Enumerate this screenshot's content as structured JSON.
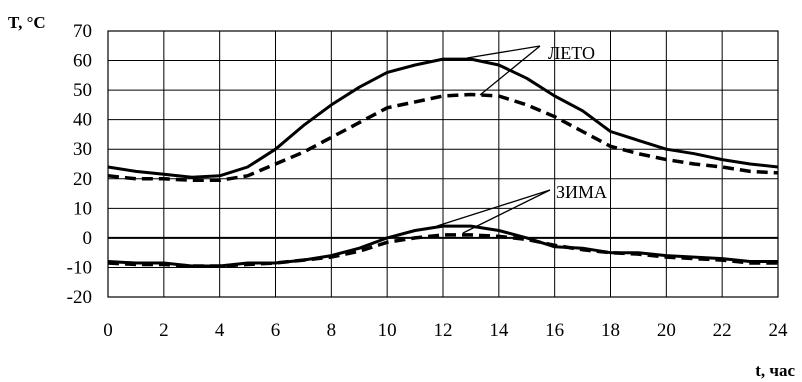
{
  "chart_data": {
    "type": "line",
    "ylabel": "T, °C",
    "xlabel": "t, час",
    "xlim": [
      0,
      24
    ],
    "ylim": [
      -20,
      70
    ],
    "x_ticks": [
      "0",
      "2",
      "4",
      "6",
      "8",
      "10",
      "12",
      "14",
      "16",
      "18",
      "20",
      "22",
      "24"
    ],
    "y_ticks": [
      "-20",
      "-10",
      "0",
      "10",
      "20",
      "30",
      "40",
      "50",
      "60",
      "70"
    ],
    "grid": true,
    "annotations": [
      {
        "text": "ЛЕТО",
        "series_group": "summer"
      },
      {
        "text": "ЗИМА",
        "series_group": "winter"
      }
    ],
    "series": [
      {
        "group": "summer",
        "style": "solid",
        "x": [
          0,
          1,
          2,
          3,
          4,
          5,
          6,
          7,
          8,
          9,
          10,
          11,
          12,
          13,
          14,
          15,
          16,
          17,
          18,
          19,
          20,
          21,
          22,
          23,
          24
        ],
        "y": [
          24,
          22.5,
          21.5,
          20.5,
          21,
          24,
          30,
          38,
          45,
          51,
          56,
          58.5,
          60.5,
          60.5,
          58.5,
          54,
          48,
          43,
          36,
          33,
          30,
          28.5,
          26.5,
          25,
          24
        ]
      },
      {
        "group": "summer",
        "style": "dashed",
        "x": [
          0,
          1,
          2,
          3,
          4,
          5,
          6,
          7,
          8,
          9,
          10,
          11,
          12,
          13,
          14,
          15,
          16,
          17,
          18,
          19,
          20,
          21,
          22,
          23,
          24
        ],
        "y": [
          21,
          20,
          20,
          19.5,
          19.5,
          21,
          25,
          29,
          34,
          39,
          44,
          46,
          48,
          48.5,
          48,
          45,
          41,
          36,
          31,
          28.5,
          26.5,
          25,
          24,
          22.5,
          22
        ]
      },
      {
        "group": "winter",
        "style": "solid",
        "x": [
          0,
          1,
          2,
          3,
          4,
          5,
          6,
          7,
          8,
          9,
          10,
          11,
          12,
          13,
          14,
          15,
          16,
          17,
          18,
          19,
          20,
          21,
          22,
          23,
          24
        ],
        "y": [
          -8,
          -8.5,
          -8.5,
          -9.5,
          -9.5,
          -8.5,
          -8.5,
          -7.5,
          -6,
          -3.5,
          0,
          2.5,
          4,
          4,
          2.5,
          0,
          -3,
          -3.5,
          -5,
          -5,
          -6,
          -6.5,
          -7,
          -8,
          -8
        ]
      },
      {
        "group": "winter",
        "style": "dashed",
        "x": [
          0,
          1,
          2,
          3,
          4,
          5,
          6,
          7,
          8,
          9,
          10,
          11,
          12,
          13,
          14,
          15,
          16,
          17,
          18,
          19,
          20,
          21,
          22,
          23,
          24
        ],
        "y": [
          -8.5,
          -9,
          -9,
          -9.5,
          -9.5,
          -9,
          -8.5,
          -7.5,
          -6.5,
          -4.5,
          -1.5,
          0,
          1,
          1,
          0.5,
          -0.5,
          -2.5,
          -4,
          -5,
          -5.5,
          -6.5,
          -7,
          -7.5,
          -8.5,
          -8.5
        ]
      }
    ]
  }
}
